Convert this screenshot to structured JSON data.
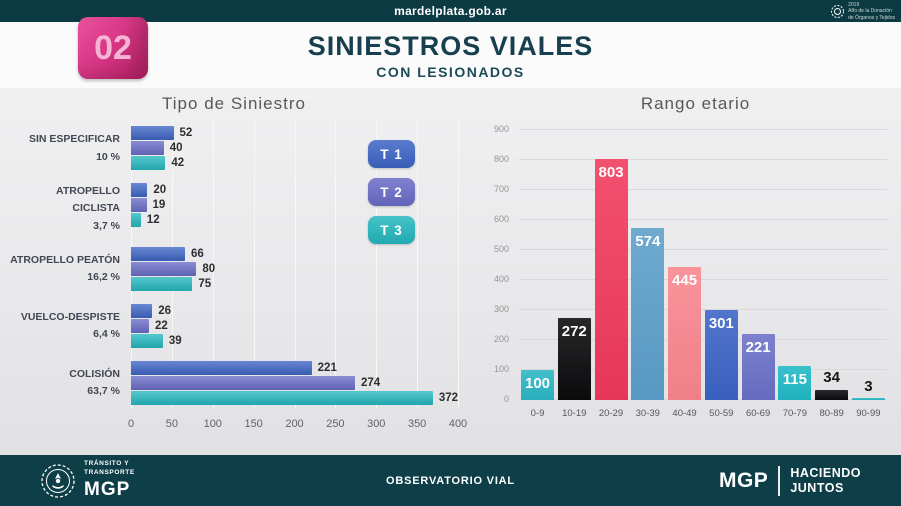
{
  "topbar": {
    "url": "mardelplata.gob.ar",
    "emblem": {
      "line1": "2019",
      "line2": "Año de la Donación",
      "line3": "de Órganos y Tejidos"
    }
  },
  "header": {
    "badge": "02",
    "title": "SINIESTROS VIALES",
    "subtitle": "CON LESIONADOS"
  },
  "chart_data": [
    {
      "type": "bar",
      "orientation": "horizontal",
      "title": "Tipo de Siniestro",
      "categories": [
        {
          "label": "SIN ESPECIFICAR",
          "pct": "10 %"
        },
        {
          "label": "ATROPELLO CICLISTA",
          "pct": "3,7 %"
        },
        {
          "label": "ATROPELLO PEATÓN",
          "pct": "16,2 %"
        },
        {
          "label": "VUELCO-DESPISTE",
          "pct": "6,4 %"
        },
        {
          "label": "COLISIÓN",
          "pct": "63,7 %"
        }
      ],
      "series": [
        {
          "name": "T 1",
          "color": "#3e65c6",
          "values": [
            52,
            20,
            66,
            26,
            221
          ]
        },
        {
          "name": "T 2",
          "color": "#6a6cc8",
          "values": [
            40,
            19,
            80,
            22,
            274
          ]
        },
        {
          "name": "T 3",
          "color": "#25b8bf",
          "values": [
            42,
            12,
            75,
            39,
            372
          ]
        }
      ],
      "xlim": [
        0,
        400
      ],
      "xticks": [
        0,
        50,
        100,
        150,
        200,
        250,
        300,
        350,
        400
      ],
      "grid": "vertical",
      "legend_position": "right"
    },
    {
      "type": "bar",
      "orientation": "vertical",
      "title": "Rango etario",
      "categories": [
        "0-9",
        "10-19",
        "20-29",
        "30-39",
        "40-49",
        "50-59",
        "60-69",
        "70-79",
        "80-89",
        "90-99"
      ],
      "values": [
        100,
        272,
        803,
        574,
        445,
        301,
        221,
        115,
        34,
        3
      ],
      "colors": [
        "#2ab5c4",
        "#0b0b0d",
        "#f0395b",
        "#5b9ec9",
        "#f9858d",
        "#3b63c5",
        "#6a6fc7",
        "#1fb9c5",
        "#0b0b0d",
        "#2ab5c4"
      ],
      "ylim": [
        0,
        900
      ],
      "yticks": [
        0,
        100,
        200,
        300,
        400,
        500,
        600,
        700,
        800,
        900
      ],
      "grid": "horizontal",
      "label_inside_min": 100
    }
  ],
  "footer": {
    "left_org_line1": "TRÁNSITO Y",
    "left_org_line2": "TRANSPORTE",
    "left_brand": "MGP",
    "center": "OBSERVATORIO VIAL",
    "right_brand": "MGP",
    "right_tagline_line1": "HACIENDO",
    "right_tagline_line2": "JUNTOS"
  }
}
